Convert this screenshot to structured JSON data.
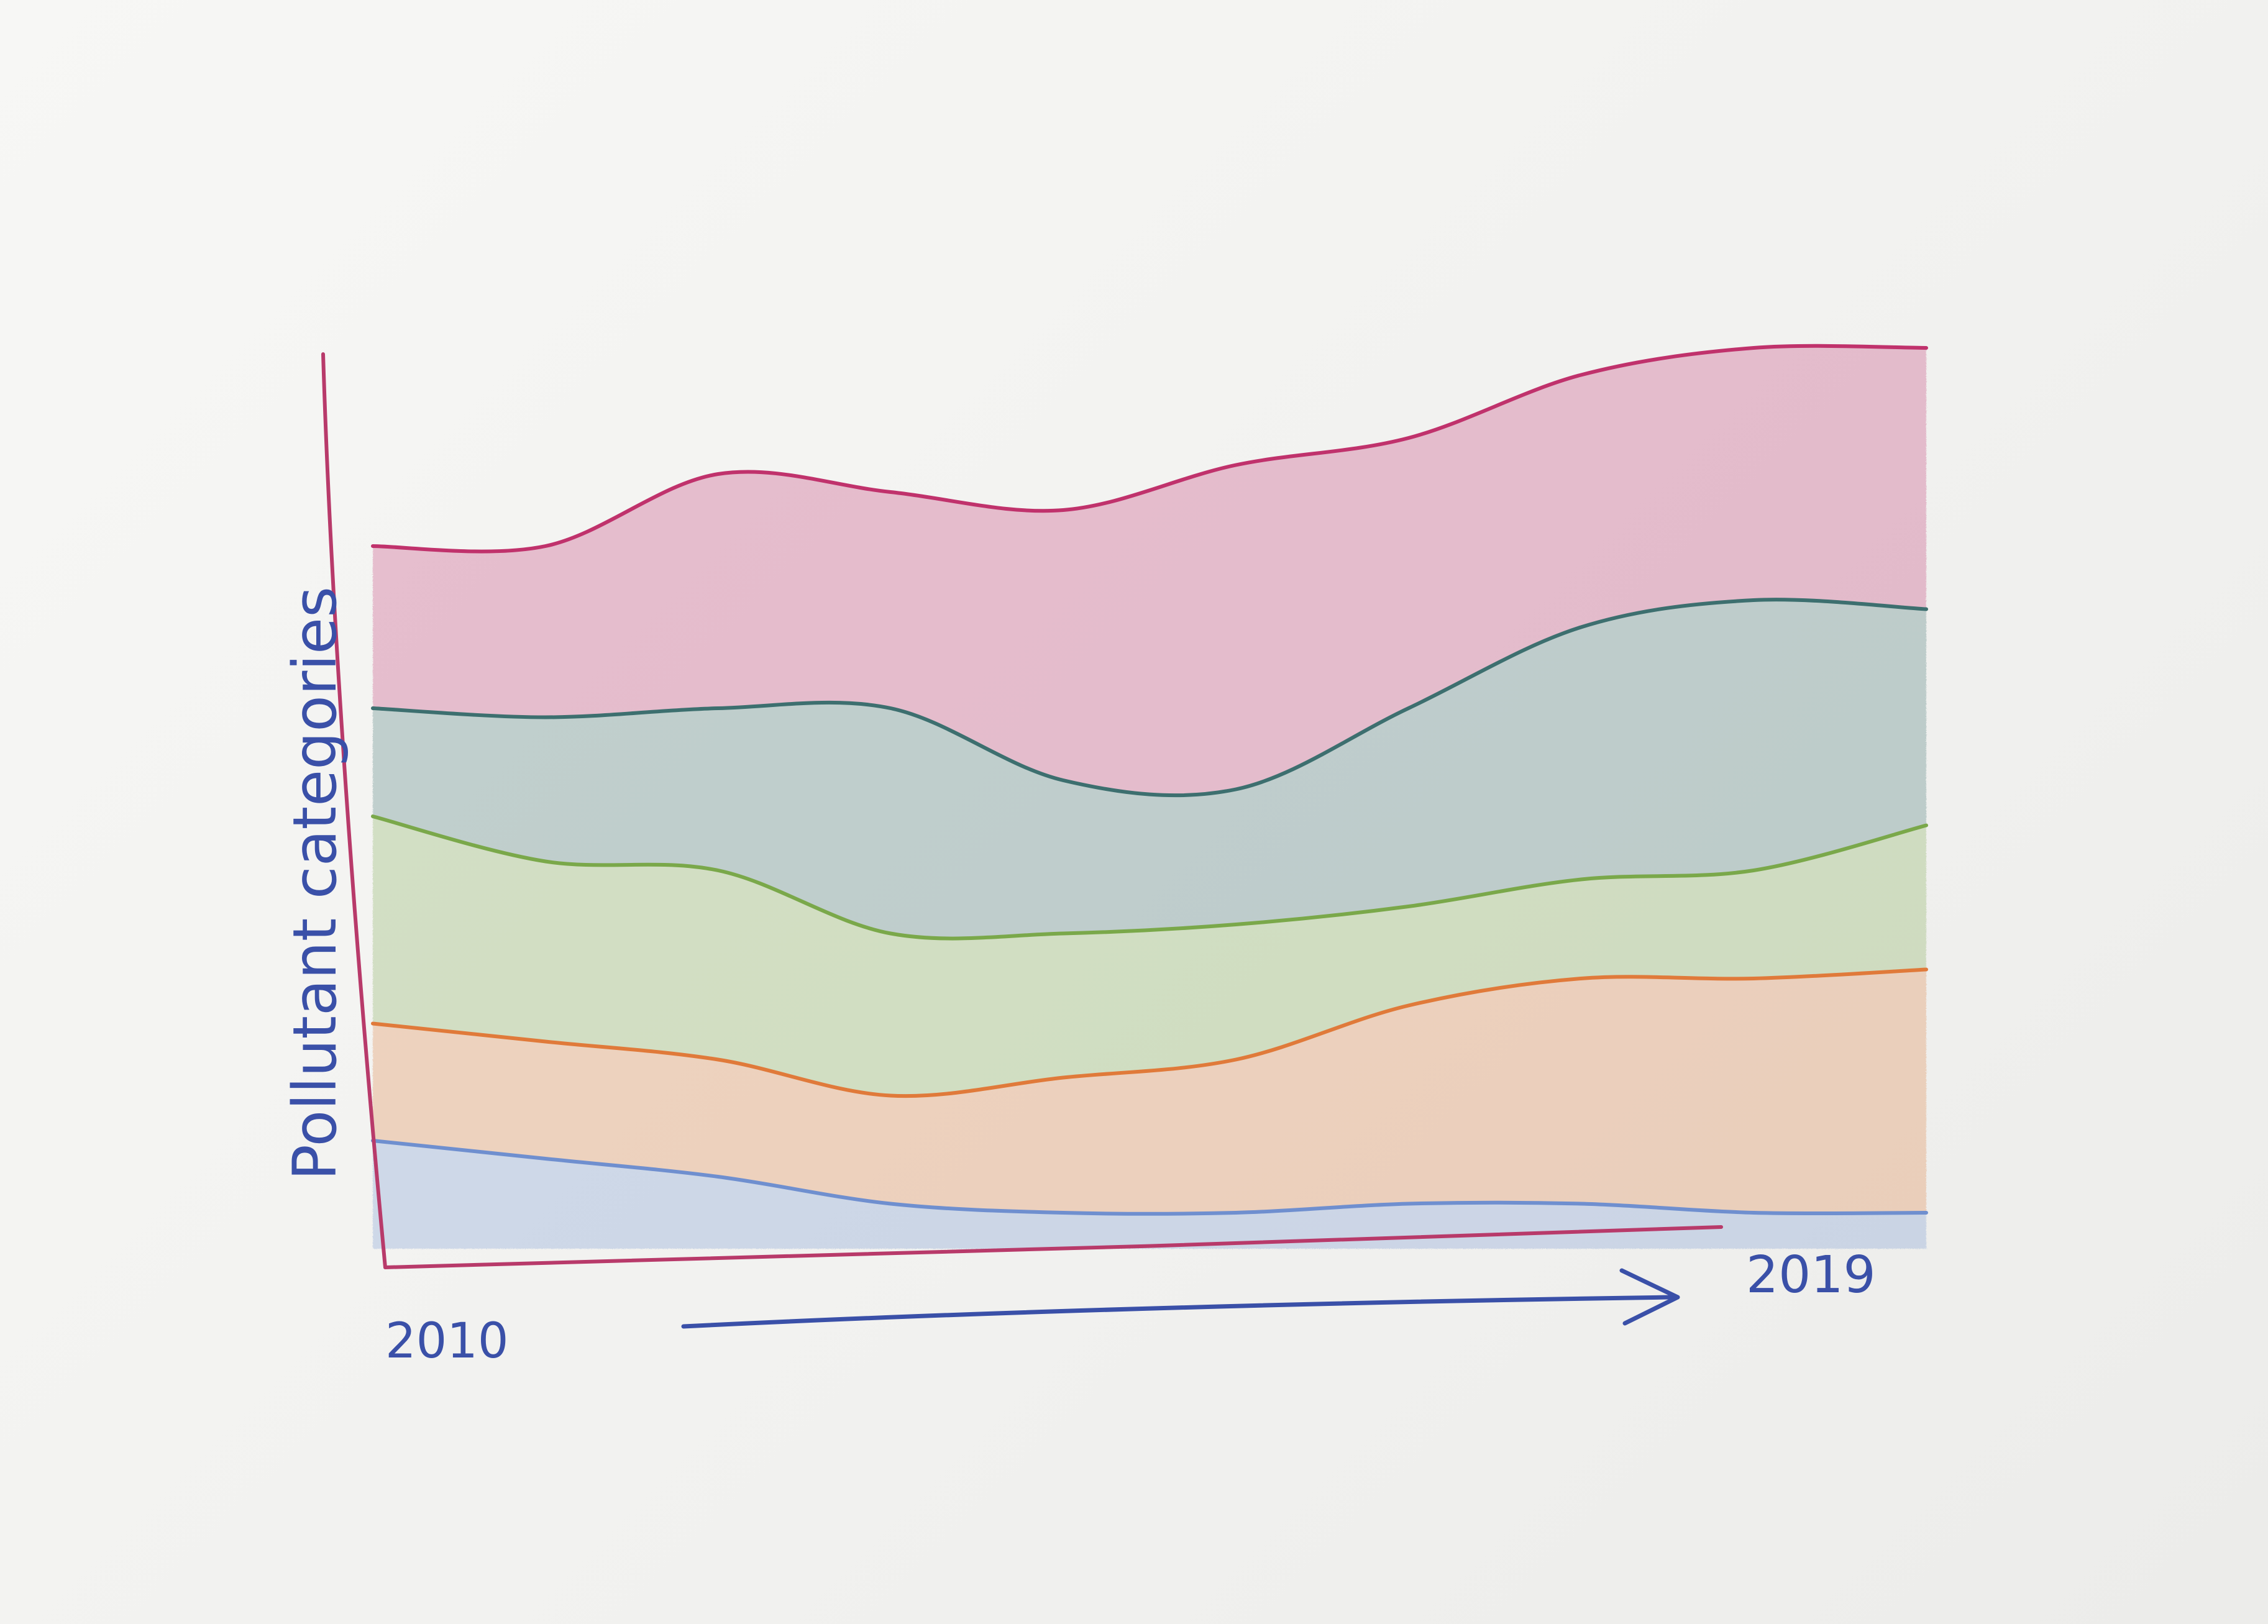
{
  "chart_data": {
    "type": "area",
    "stacked": true,
    "xlabel": "",
    "ylabel": "Pollutant categories",
    "x_tick_labels": [
      "2010",
      "2019"
    ],
    "x_range": [
      2010,
      2019
    ],
    "y_range": [
      0,
      100
    ],
    "grid": false,
    "legend": "none",
    "x": [
      2010,
      2011,
      2012,
      2013,
      2014,
      2015,
      2016,
      2017,
      2018,
      2019
    ],
    "series": [
      {
        "color": "#6f8fcf",
        "values": [
          12,
          10,
          8,
          5,
          4,
          4,
          5,
          5,
          4,
          4
        ]
      },
      {
        "color": "#e07a3a",
        "values": [
          13,
          13,
          13,
          12,
          15,
          17,
          22,
          25,
          26,
          27
        ]
      },
      {
        "color": "#7aa84a",
        "values": [
          23,
          20,
          21,
          18,
          16,
          15,
          11,
          11,
          12,
          16
        ]
      },
      {
        "color": "#3d6f6f",
        "values": [
          12,
          16,
          18,
          25,
          17,
          15,
          22,
          28,
          30,
          24
        ]
      },
      {
        "color": "#c0326c",
        "values": [
          18,
          19,
          26,
          24,
          30,
          36,
          30,
          28,
          28,
          29
        ]
      }
    ]
  }
}
